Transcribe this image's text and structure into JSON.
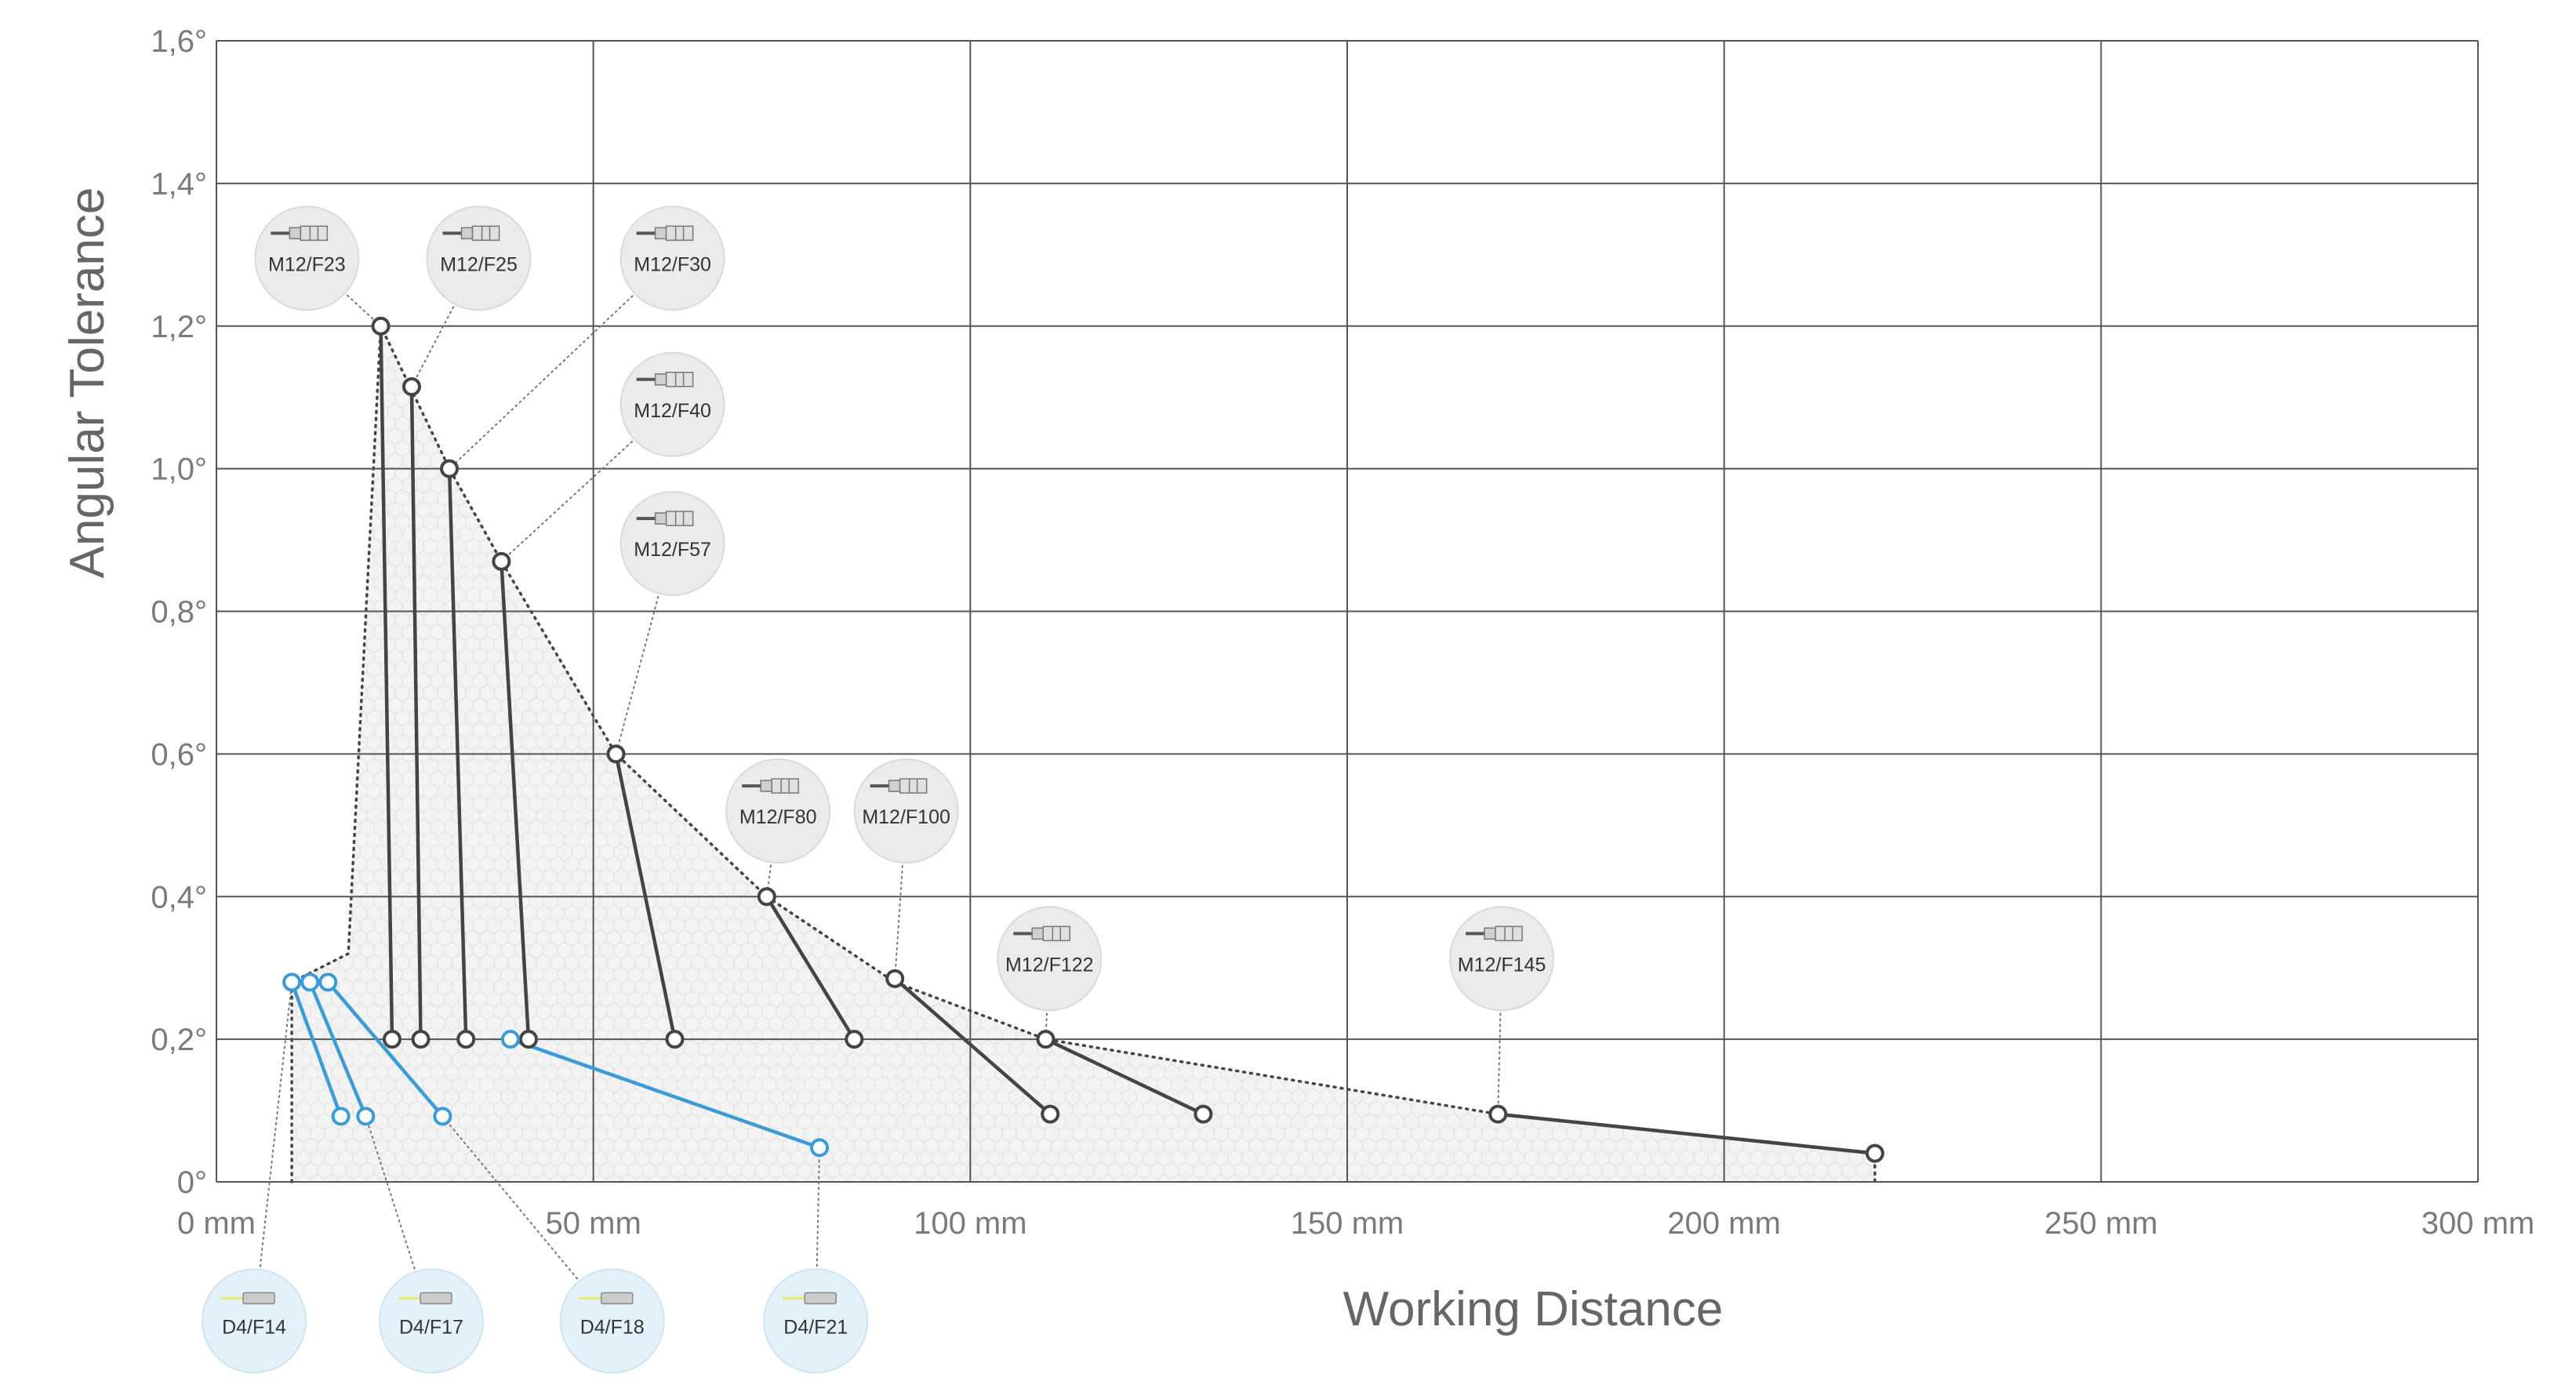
{
  "chart_data": {
    "type": "scatter",
    "xlabel": "Working Distance",
    "ylabel": "Angular Tolerance",
    "xlim": [
      0,
      300
    ],
    "ylim": [
      0,
      1.6
    ],
    "grid": true,
    "x_ticks": [
      {
        "v": 0,
        "label": "0 mm"
      },
      {
        "v": 50,
        "label": "50 mm"
      },
      {
        "v": 100,
        "label": "100 mm"
      },
      {
        "v": 150,
        "label": "150 mm"
      },
      {
        "v": 200,
        "label": "200 mm"
      },
      {
        "v": 250,
        "label": "250 mm"
      },
      {
        "v": 300,
        "label": "300 mm"
      }
    ],
    "y_ticks": [
      {
        "v": 0,
        "label": "0°"
      },
      {
        "v": 0.2,
        "label": "0,2°"
      },
      {
        "v": 0.4,
        "label": "0,4°"
      },
      {
        "v": 0.6,
        "label": "0,6°"
      },
      {
        "v": 0.8,
        "label": "0,8°"
      },
      {
        "v": 1.0,
        "label": "1,0°"
      },
      {
        "v": 1.2,
        "label": "1,2°"
      },
      {
        "v": 1.4,
        "label": "1,4°"
      },
      {
        "v": 1.6,
        "label": "1,6°"
      }
    ],
    "colors": {
      "m12_series": "#444444",
      "d4_series": "#3a9bd5",
      "grid": "#555555",
      "area_fill": "#f3f3f3",
      "m12_badge": "#ebebeb",
      "d4_badge": "#e3f1fa"
    },
    "envelope": [
      [
        10,
        0
      ],
      [
        10,
        0.28
      ],
      [
        17.5,
        0.32
      ],
      [
        21.8,
        1.2
      ],
      [
        30.9,
        1.0
      ],
      [
        37.8,
        0.87
      ],
      [
        53,
        0.6
      ],
      [
        73,
        0.4
      ],
      [
        90,
        0.28
      ],
      [
        110,
        0.2
      ],
      [
        170,
        0.095
      ],
      [
        220,
        0.04
      ],
      [
        220,
        0
      ]
    ],
    "series": [
      {
        "name": "M12/F23",
        "group": "M12",
        "start": [
          21.8,
          1.2
        ],
        "end": [
          23.3,
          0.2
        ]
      },
      {
        "name": "M12/F25",
        "group": "M12",
        "start": [
          25.9,
          1.115
        ],
        "end": [
          27.1,
          0.2
        ]
      },
      {
        "name": "M12/F30",
        "group": "M12",
        "start": [
          30.9,
          1.0
        ],
        "end": [
          33.1,
          0.2
        ]
      },
      {
        "name": "M12/F40",
        "group": "M12",
        "start": [
          37.8,
          0.87
        ],
        "end": [
          41.4,
          0.2
        ]
      },
      {
        "name": "M12/F57",
        "group": "M12",
        "start": [
          53,
          0.6
        ],
        "end": [
          60.8,
          0.2
        ]
      },
      {
        "name": "M12/F80",
        "group": "M12",
        "start": [
          73,
          0.4
        ],
        "end": [
          84.6,
          0.2
        ]
      },
      {
        "name": "M12/F100",
        "group": "M12",
        "start": [
          90,
          0.285
        ],
        "end": [
          110.6,
          0.095
        ]
      },
      {
        "name": "M12/F122",
        "group": "M12",
        "start": [
          110,
          0.2
        ],
        "end": [
          130.9,
          0.095
        ]
      },
      {
        "name": "M12/F145",
        "group": "M12",
        "start": [
          170,
          0.095
        ],
        "end": [
          220,
          0.04
        ]
      },
      {
        "name": "D4/F14",
        "group": "D4",
        "start": [
          10,
          0.28
        ],
        "end": [
          16.5,
          0.092
        ]
      },
      {
        "name": "D4/F17",
        "group": "D4",
        "start": [
          12.4,
          0.28
        ],
        "end": [
          19.8,
          0.092
        ]
      },
      {
        "name": "D4/F18",
        "group": "D4",
        "start": [
          14.8,
          0.28
        ],
        "end": [
          30,
          0.092
        ]
      },
      {
        "name": "D4/F21",
        "group": "D4",
        "start": [
          39,
          0.2
        ],
        "end": [
          80,
          0.048
        ]
      }
    ],
    "badges": [
      {
        "label": "M12/F23",
        "group": "M12",
        "bx": 12.0,
        "by": 1.295,
        "point": [
          21.8,
          1.2
        ]
      },
      {
        "label": "M12/F25",
        "group": "M12",
        "bx": 34.8,
        "by": 1.295,
        "point": [
          25.9,
          1.115
        ]
      },
      {
        "label": "M12/F30",
        "group": "M12",
        "bx": 60.5,
        "by": 1.295,
        "point": [
          30.9,
          1.0
        ]
      },
      {
        "label": "M12/F40",
        "group": "M12",
        "bx": 60.5,
        "by": 1.09,
        "point": [
          37.8,
          0.87
        ]
      },
      {
        "label": "M12/F57",
        "group": "M12",
        "bx": 60.5,
        "by": 0.895,
        "point": [
          53,
          0.6
        ]
      },
      {
        "label": "M12/F80",
        "group": "M12",
        "bx": 74.5,
        "by": 0.52,
        "point": [
          73,
          0.4
        ]
      },
      {
        "label": "M12/F100",
        "group": "M12",
        "bx": 91.5,
        "by": 0.52,
        "point": [
          90,
          0.285
        ]
      },
      {
        "label": "M12/F122",
        "group": "M12",
        "bx": 110.5,
        "by": 0.313,
        "point": [
          110,
          0.2
        ]
      },
      {
        "label": "M12/F145",
        "group": "M12",
        "bx": 170.5,
        "by": 0.313,
        "point": [
          170,
          0.095
        ]
      },
      {
        "label": "D4/F14",
        "group": "D4",
        "bx": 5.0,
        "by": -0.195,
        "point": [
          10,
          0.28
        ]
      },
      {
        "label": "D4/F17",
        "group": "D4",
        "bx": 28.5,
        "by": -0.195,
        "point": [
          19.8,
          0.092
        ]
      },
      {
        "label": "D4/F18",
        "group": "D4",
        "bx": 52.5,
        "by": -0.195,
        "point": [
          30,
          0.092
        ]
      },
      {
        "label": "D4/F21",
        "group": "D4",
        "bx": 79.5,
        "by": -0.195,
        "point": [
          80,
          0.048
        ]
      }
    ]
  }
}
